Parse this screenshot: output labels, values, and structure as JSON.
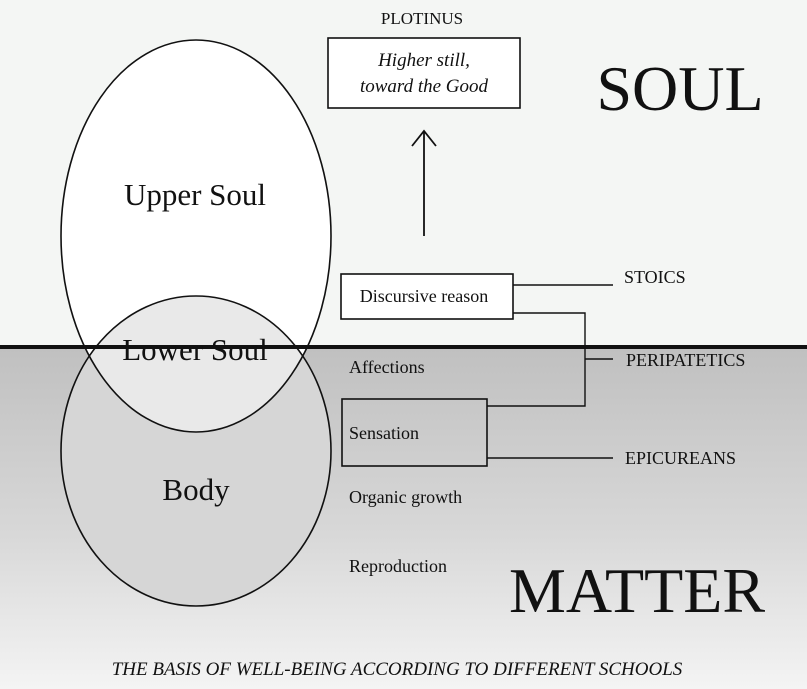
{
  "regions": {
    "top_label": "SOUL",
    "bottom_label": "MATTER"
  },
  "plotinus": {
    "label": "PLOTINUS",
    "box_line1": "Higher still,",
    "box_line2": "toward the Good"
  },
  "circles": {
    "upper": "Upper Soul",
    "lower": "Lower Soul",
    "body": "Body"
  },
  "faculties": {
    "discursive_reason": "Discursive reason",
    "affections": "Affections",
    "sensation": "Sensation",
    "organic_growth": "Organic growth",
    "reproduction": "Reproduction"
  },
  "schools": {
    "stoics": "STOICS",
    "peripatetics": "PERIPATETICS",
    "epicureans": "EPICUREANS"
  },
  "caption": "THE BASIS OF WELL-BEING ACCORDING TO DIFFERENT SCHOOLS",
  "colors": {
    "soul_background": "#f4f6f4",
    "matter_gradient_top": "#bfbfbf",
    "matter_gradient_bottom": "#f3f3f3",
    "lens_fill": "#e9e9e9",
    "ink": "#111111"
  }
}
